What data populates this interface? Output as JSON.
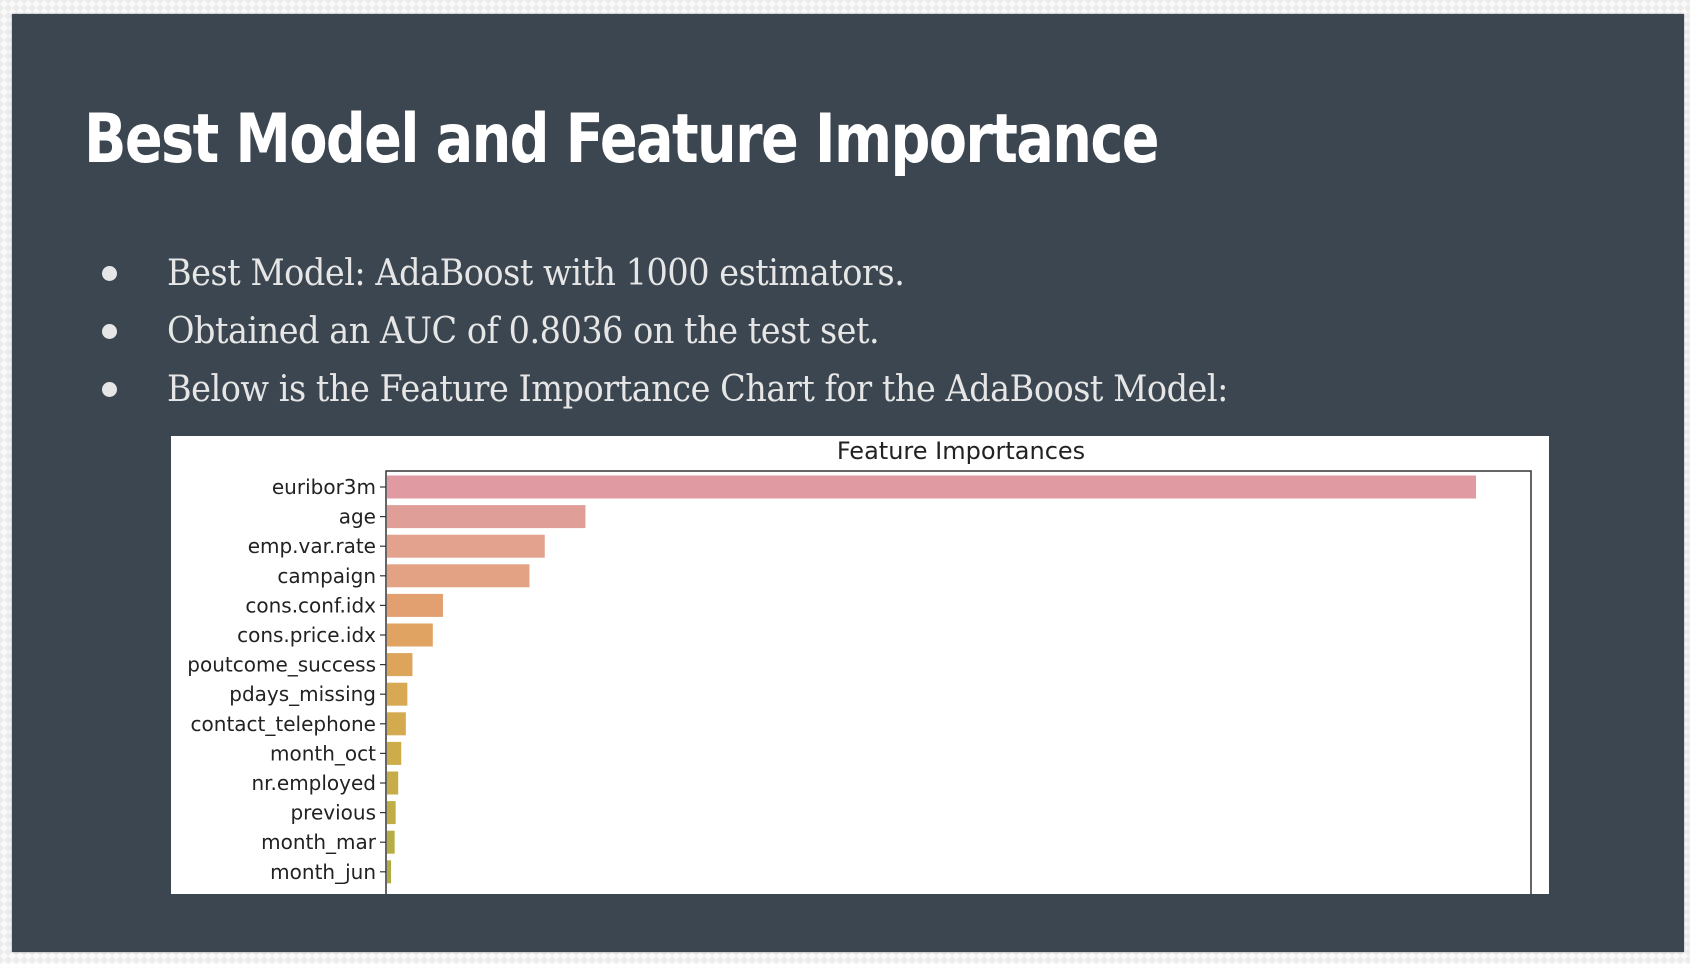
{
  "slide": {
    "title": "Best Model and Feature Importance",
    "bullets": [
      "Best Model: AdaBoost with 1000 estimators.",
      "Obtained an AUC of 0.8036 on the test set.",
      "Below is the Feature Importance Chart for the AdaBoost Model:"
    ]
  },
  "chart_data": {
    "type": "bar",
    "orientation": "horizontal",
    "title": "Feature Importances",
    "xlabel": "",
    "ylabel": "",
    "grid": false,
    "categories": [
      "euribor3m",
      "age",
      "emp.var.rate",
      "campaign",
      "cons.conf.idx",
      "cons.price.idx",
      "poutcome_success",
      "pdays_missing",
      "contact_telephone",
      "month_oct",
      "nr.employed",
      "previous",
      "month_mar",
      "month_jun"
    ],
    "values": [
      0.214,
      0.039,
      0.031,
      0.028,
      0.011,
      0.009,
      0.005,
      0.004,
      0.0037,
      0.0028,
      0.0022,
      0.0017,
      0.0015,
      0.0008
    ],
    "xlim": [
      0,
      0.225
    ],
    "colors": [
      "#e09aa2",
      "#e09e98",
      "#e2a28e",
      "#e3a283",
      "#e2a070",
      "#e0a362",
      "#dda45b",
      "#d9a854",
      "#d3aa4e",
      "#cdac4a",
      "#c6ad47",
      "#bfad45",
      "#b7ad44",
      "#b0ab42"
    ]
  }
}
